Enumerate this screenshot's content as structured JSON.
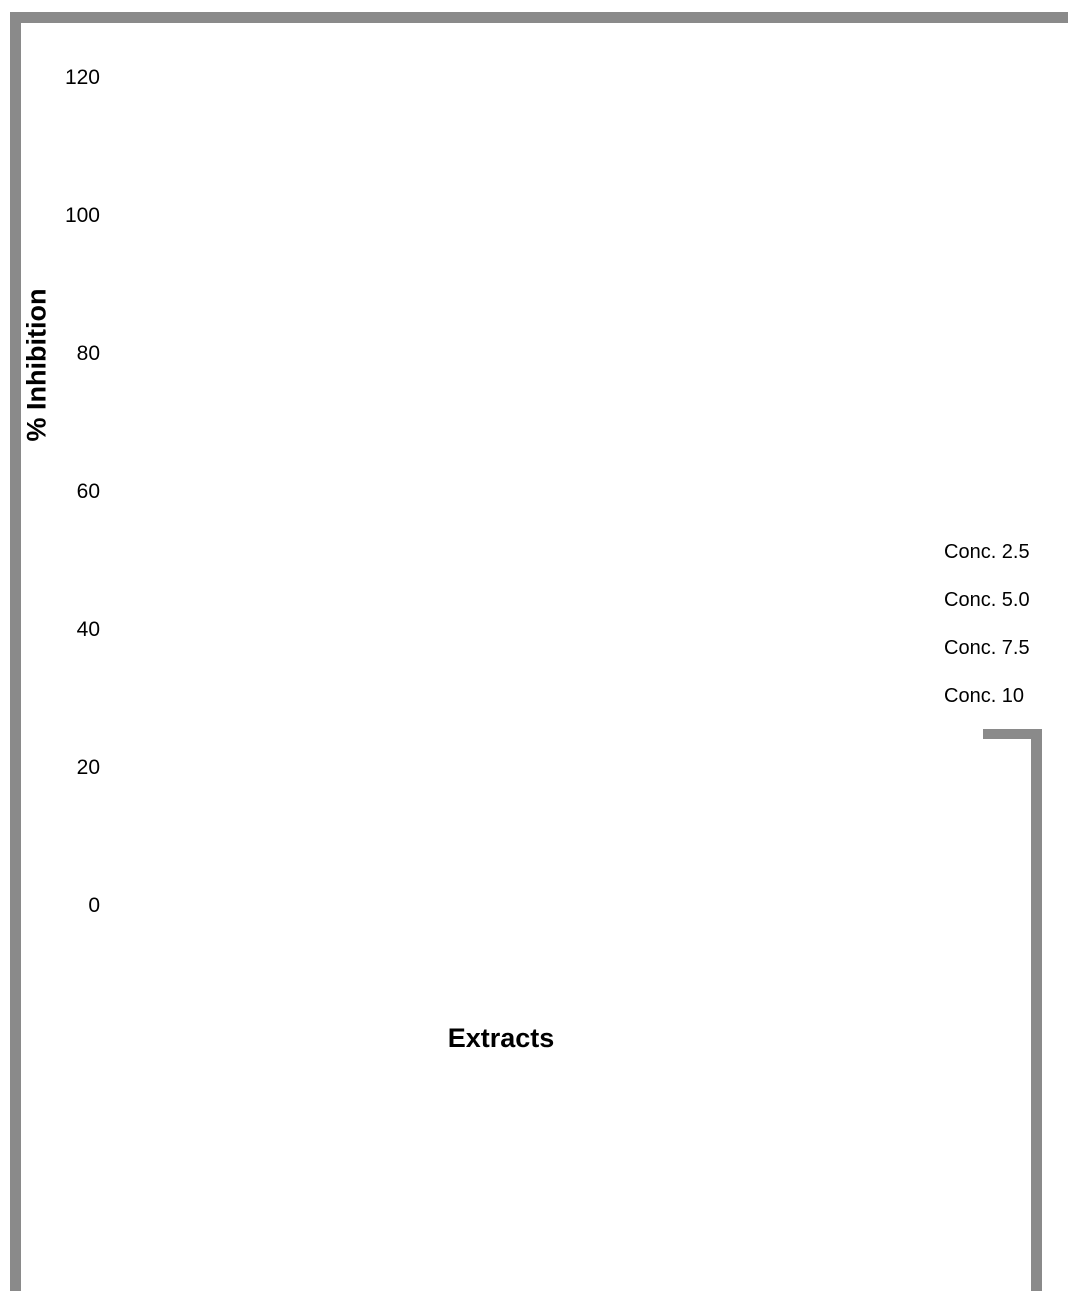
{
  "chart_data": {
    "type": "bar",
    "title": "",
    "xlabel": "Extracts",
    "ylabel": "% Inhibition",
    "ylim": [
      0,
      120
    ],
    "yticks": [
      "120",
      "100",
      "80",
      "60",
      "40",
      "20",
      "0"
    ],
    "categories": [],
    "series": [
      {
        "name": "Conc. 2.5",
        "values": []
      },
      {
        "name": "Conc. 5.0",
        "values": []
      },
      {
        "name": "Conc. 7.5",
        "values": []
      },
      {
        "name": "Conc. 10",
        "values": []
      }
    ],
    "grid": false,
    "legend_position": "right"
  },
  "colors": {
    "border": "#8a8a8a",
    "text": "#000000",
    "background": "#ffffff"
  }
}
